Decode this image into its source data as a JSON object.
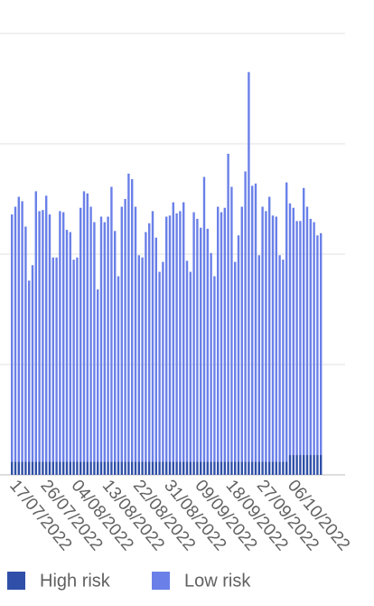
{
  "chart_data": {
    "type": "bar",
    "stacked": true,
    "categories": [
      "17/07/2022",
      null,
      null,
      null,
      null,
      null,
      null,
      null,
      null,
      "26/07/2022",
      null,
      null,
      null,
      null,
      null,
      null,
      null,
      null,
      "04/08/2022",
      null,
      null,
      null,
      null,
      null,
      null,
      null,
      null,
      "13/08/2022",
      null,
      null,
      null,
      null,
      null,
      null,
      null,
      null,
      "22/08/2022",
      null,
      null,
      null,
      null,
      null,
      null,
      null,
      null,
      "31/08/2022",
      null,
      null,
      null,
      null,
      null,
      null,
      null,
      null,
      "09/09/2022",
      null,
      null,
      null,
      null,
      null,
      null,
      null,
      null,
      "18/09/2022",
      null,
      null,
      null,
      null,
      null,
      null,
      null,
      null,
      "27/09/2022",
      null,
      null,
      null,
      null,
      null,
      null,
      null,
      null,
      "06/10/2022",
      null,
      null,
      null,
      null,
      null,
      null,
      null,
      null,
      null
    ],
    "series": [
      {
        "name": "High risk",
        "color": "#2f4fa8",
        "values": [
          12,
          12,
          12,
          12,
          12,
          12,
          12,
          12,
          12,
          12,
          12,
          12,
          12,
          12,
          12,
          12,
          12,
          12,
          12,
          12,
          12,
          12,
          12,
          12,
          12,
          12,
          12,
          12,
          12,
          12,
          12,
          12,
          12,
          12,
          12,
          12,
          12,
          12,
          12,
          12,
          12,
          12,
          12,
          12,
          12,
          12,
          12,
          12,
          12,
          12,
          12,
          12,
          12,
          12,
          12,
          12,
          12,
          12,
          12,
          12,
          12,
          12,
          12,
          12,
          12,
          12,
          12,
          12,
          12,
          12,
          12,
          12,
          12,
          12,
          12,
          12,
          12,
          12,
          12,
          12,
          12,
          18,
          18,
          18,
          18,
          18,
          18,
          18,
          18,
          18,
          18
        ]
      },
      {
        "name": "Low risk",
        "color": "#6a80e8",
        "values": [
          224,
          231,
          240,
          236,
          213,
          164,
          178,
          245,
          227,
          228,
          241,
          224,
          185,
          185,
          227,
          226,
          210,
          208,
          183,
          185,
          230,
          245,
          243,
          231,
          217,
          156,
          222,
          217,
          222,
          249,
          209,
          168,
          231,
          238,
          261,
          256,
          231,
          187,
          185,
          208,
          216,
          227,
          203,
          172,
          181,
          222,
          223,
          235,
          225,
          227,
          235,
          182,
          172,
          226,
          220,
          212,
          258,
          211,
          189,
          168,
          231,
          226,
          230,
          279,
          249,
          181,
          205,
          231,
          263,
          353,
          250,
          252,
          187,
          231,
          227,
          240,
          223,
          222,
          187,
          183,
          253,
          228,
          224,
          212,
          212,
          242,
          225,
          214,
          211,
          199,
          201
        ]
      }
    ],
    "ylim": [
      0,
      400
    ],
    "yticks": [
      0,
      100,
      200,
      300,
      400
    ],
    "grid": true
  }
}
